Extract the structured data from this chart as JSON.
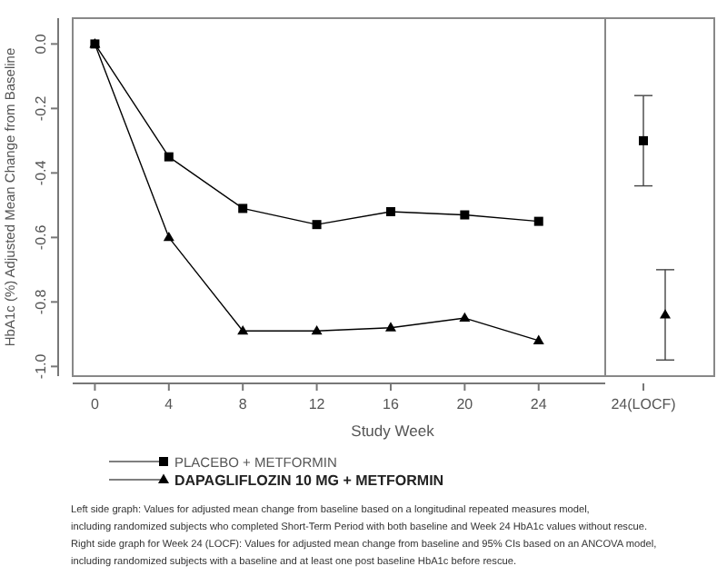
{
  "chart_data": [
    {
      "type": "line",
      "xlabel": "Study Week",
      "ylabel": "HbA1c (%) Adjusted Mean Change from Baseline",
      "x": [
        0,
        4,
        8,
        12,
        16,
        20,
        24
      ],
      "xlim": [
        -1.2,
        27.6
      ],
      "xticks": [
        0,
        4,
        8,
        12,
        16,
        20,
        24
      ],
      "ylim": [
        -1.03,
        0.08
      ],
      "yticks": [
        "0.0",
        -0.2,
        -0.4,
        -0.6,
        -0.8,
        "-1.0"
      ],
      "legend": "bottom",
      "grid": false,
      "series": [
        {
          "name": "PLACEBO + METFORMIN",
          "color": "#000000",
          "marker": "square",
          "values": [
            0,
            -0.35,
            -0.51,
            -0.56,
            -0.52,
            -0.53,
            -0.55
          ]
        },
        {
          "name": "DAPAGLIFLOZIN 10 MG + METFORMIN",
          "color": "#000000",
          "marker": "triangle",
          "values": [
            0,
            -0.6,
            -0.89,
            -0.89,
            -0.88,
            -0.85,
            -0.92
          ]
        }
      ],
      "annotations": [
        "Left side graph: Values for adjusted mean change from baseline based on a longitudinal repeated measures model,",
        "including randomized subjects who completed Short-Term Period with both baseline and Week 24 HbA1c values without rescue.",
        "Right side graph for Week 24 (LOCF): Values for adjusted mean change from baseline and 95% CIs based on an ANCOVA model,",
        "including randomized subjects with a baseline and at least one post baseline HbA1c before rescue."
      ]
    },
    {
      "type": "scatter",
      "categories": [
        "24(LOCF)"
      ],
      "ylim": [
        -1.03,
        0.08
      ],
      "tick_labels": "x",
      "series": [
        {
          "color": "#000000",
          "marker": "square",
          "values": [
            -0.3
          ],
          "errors": [
            [
              -0.44,
              -0.16
            ]
          ]
        },
        {
          "color": "#000000",
          "marker": "triangle",
          "values": [
            -0.84
          ],
          "errors": [
            [
              -0.98,
              -0.7
            ]
          ]
        }
      ]
    }
  ]
}
